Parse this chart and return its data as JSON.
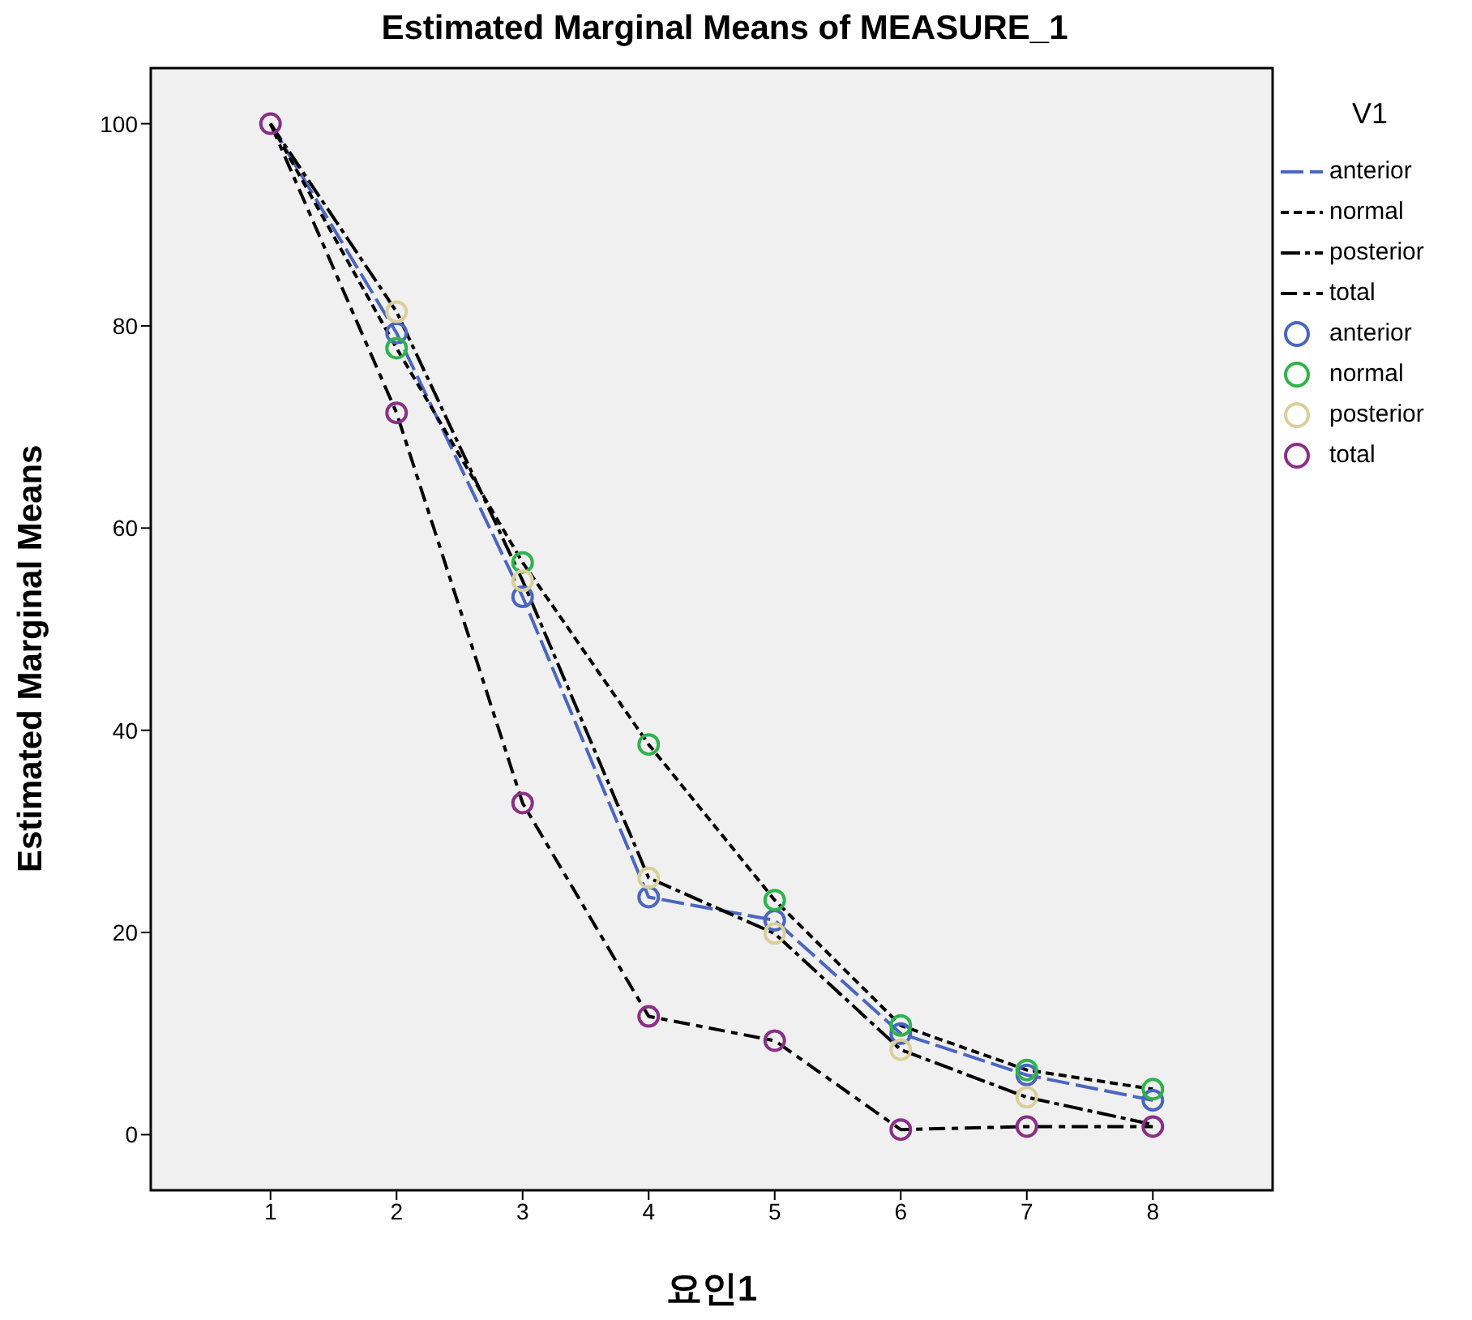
{
  "chart_data": {
    "type": "line",
    "title": "Estimated Marginal Means of MEASURE_1",
    "xlabel": "요인1",
    "ylabel": "Estimated Marginal Means",
    "legend_title": "V1",
    "x": [
      1,
      2,
      3,
      4,
      5,
      6,
      7,
      8
    ],
    "series": [
      {
        "name": "anterior",
        "color": "#4a66c0",
        "line_style": "dashed",
        "marker": "none",
        "values": [
          100,
          79.3,
          53.2,
          23.5,
          21.2,
          10.0,
          5.9,
          3.4
        ]
      },
      {
        "name": "normal",
        "color": "#000000",
        "line_style": "dashed",
        "marker": "none",
        "values": [
          100,
          77.8,
          56.6,
          38.6,
          23.2,
          10.8,
          6.4,
          4.5
        ]
      },
      {
        "name": "posterior",
        "color": "#000000",
        "line_style": "dashed",
        "marker": "none",
        "values": [
          100,
          81.4,
          54.8,
          25.4,
          19.9,
          8.4,
          3.7,
          1.0
        ]
      },
      {
        "name": "total",
        "color": "#000000",
        "line_style": "dashed",
        "marker": "none",
        "values": [
          100,
          71.4,
          32.8,
          11.7,
          9.3,
          0.5,
          0.8,
          0.8
        ]
      },
      {
        "name": "anterior",
        "type": "scatter",
        "color": "#4a66c0",
        "marker": "circle",
        "values": [
          null,
          79.3,
          53.2,
          23.5,
          21.2,
          10.0,
          5.9,
          3.4
        ]
      },
      {
        "name": "normal",
        "type": "scatter",
        "color": "#2fb34a",
        "marker": "circle",
        "values": [
          null,
          77.8,
          56.6,
          38.6,
          23.2,
          10.8,
          6.4,
          4.5
        ]
      },
      {
        "name": "posterior",
        "type": "scatter",
        "color": "#d8d09a",
        "marker": "circle",
        "values": [
          null,
          81.4,
          54.8,
          25.4,
          19.9,
          8.4,
          3.7,
          null
        ]
      },
      {
        "name": "total",
        "type": "scatter",
        "color": "#8a2f86",
        "marker": "circle",
        "values": [
          100,
          71.4,
          32.8,
          11.7,
          9.3,
          0.5,
          0.8,
          0.8
        ]
      }
    ],
    "xlim": [
      0.05,
      8.95
    ],
    "xticks": [
      1,
      2,
      3,
      4,
      5,
      6,
      7,
      8
    ],
    "ylim": [
      -5.5,
      105.5
    ],
    "yticks": [
      0,
      20,
      40,
      60,
      80,
      100
    ],
    "grid": false,
    "legend": "right"
  }
}
